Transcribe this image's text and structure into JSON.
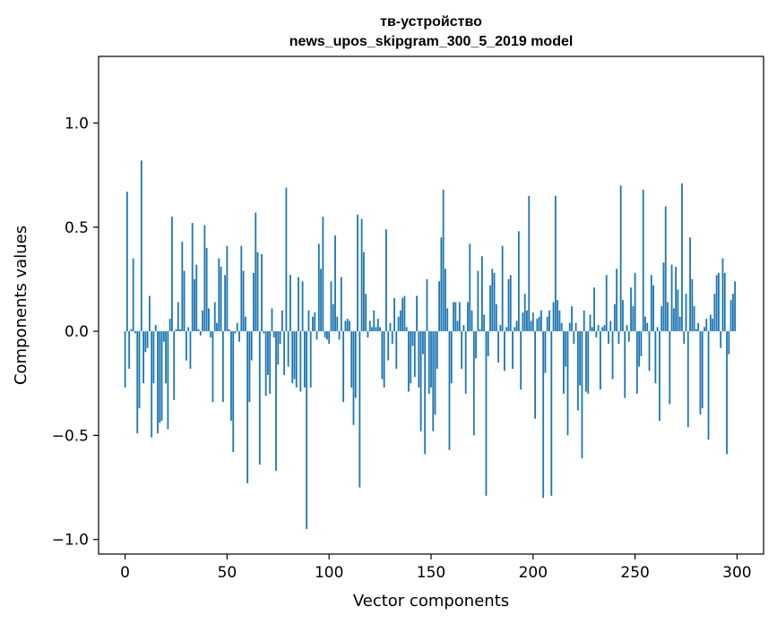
{
  "chart_data": {
    "type": "bar",
    "title_line1": "тв-устройство",
    "title_line2": "news_upos_skipgram_300_5_2019 model",
    "xlabel": "Vector components",
    "ylabel": "Components values",
    "xlim": [
      -13,
      313
    ],
    "ylim": [
      -1.07,
      1.32
    ],
    "xticks": [
      0,
      50,
      100,
      150,
      200,
      250,
      300
    ],
    "xtick_labels": [
      "0",
      "50",
      "100",
      "150",
      "200",
      "250",
      "300"
    ],
    "yticks": [
      -1.0,
      -0.5,
      0.0,
      0.5,
      1.0
    ],
    "ytick_labels": [
      "−1.0",
      "−0.5",
      "0.0",
      "0.5",
      "1.0"
    ],
    "grid": false,
    "color": "#1f77b4",
    "values": [
      -0.27,
      0.67,
      -0.18,
      0.01,
      0.35,
      -0.01,
      -0.49,
      -0.37,
      0.82,
      -0.25,
      -0.1,
      -0.08,
      0.17,
      -0.51,
      -0.25,
      0.03,
      -0.49,
      -0.44,
      -0.43,
      -0.05,
      -0.25,
      -0.47,
      0.06,
      0.55,
      -0.33,
      0.01,
      0.14,
      0.01,
      0.43,
      0.29,
      -0.14,
      0.02,
      -0.18,
      0.52,
      0.25,
      0.32,
      0.01,
      -0.02,
      0.1,
      0.51,
      0.4,
      0.11,
      -0.03,
      -0.34,
      0.14,
      0.04,
      0.35,
      0.31,
      -0.34,
      0.27,
      0.41,
      0.01,
      -0.43,
      -0.58,
      -0.01,
      0.04,
      -0.05,
      0.41,
      0.29,
      0.07,
      -0.73,
      -0.34,
      -0.14,
      0.28,
      0.57,
      0.38,
      -0.64,
      0.37,
      -0.01,
      -0.31,
      -0.21,
      -0.3,
      0.11,
      -0.03,
      -0.67,
      -0.16,
      -0.06,
      0.1,
      -0.21,
      0.69,
      -0.17,
      0.27,
      -0.25,
      -0.23,
      -0.27,
      0.26,
      -0.29,
      0.24,
      -0.27,
      -0.95,
      0.1,
      -0.27,
      0.07,
      0.09,
      -0.04,
      0.42,
      0.3,
      0.55,
      -0.03,
      -0.04,
      -0.06,
      0.24,
      0.13,
      0.46,
      0.07,
      -0.04,
      0.26,
      -0.34,
      0.05,
      0.06,
      0.05,
      -0.27,
      -0.45,
      -0.32,
      0.56,
      -0.75,
      0.54,
      0.38,
      0.18,
      -0.03,
      0.05,
      0.02,
      0.1,
      0.02,
      0.06,
      0.02,
      -0.23,
      -0.27,
      0.49,
      -0.14,
      0.04,
      -0.06,
      0.16,
      -0.18,
      0.07,
      0.1,
      0.16,
      0.17,
      0.02,
      -0.29,
      -0.25,
      -0.07,
      -0.22,
      0.17,
      -0.27,
      -0.48,
      -0.11,
      -0.59,
      0.25,
      -0.3,
      -0.27,
      -0.48,
      -0.4,
      -0.18,
      0.24,
      0.45,
      0.68,
      0.3,
      0.11,
      -0.57,
      -0.25,
      0.14,
      0.14,
      0.05,
      0.14,
      -0.18,
      0.03,
      -0.3,
      0.14,
      0.42,
      0.1,
      -0.5,
      -0.13,
      0.29,
      0.01,
      0.36,
      0.08,
      -0.79,
      -0.12,
      0.22,
      0.3,
      0.28,
      0.13,
      -0.15,
      0.03,
      0.41,
      -0.19,
      0.02,
      0.25,
      0.27,
      -0.18,
      0.02,
      0.05,
      0.48,
      -0.28,
      0.09,
      0.18,
      0.1,
      0.65,
      0.05,
      0.09,
      -0.42,
      0.06,
      0.07,
      0.1,
      -0.8,
      -0.2,
      0.07,
      0.1,
      -0.79,
      0.14,
      0.65,
      0.15,
      0.1,
      0.04,
      -0.3,
      -0.17,
      -0.5,
      0.04,
      0.12,
      -0.06,
      0.04,
      -0.38,
      -0.26,
      -0.61,
      0.1,
      -0.29,
      -0.3,
      0.08,
      0.02,
      0.21,
      -0.03,
      0.03,
      -0.28,
      0.02,
      0.03,
      0.27,
      -0.06,
      0.05,
      -0.23,
      0.13,
      0.3,
      -0.06,
      0.7,
      0.15,
      -0.32,
      0.03,
      -0.05,
      0.21,
      0.12,
      0.28,
      -0.3,
      -0.17,
      -0.12,
      0.68,
      0.07,
      0.04,
      -0.19,
      0.27,
      0.22,
      -0.25,
      0.02,
      -0.43,
      0.12,
      0.33,
      0.6,
      0.14,
      -0.35,
      0.32,
      0.11,
      0.31,
      0.2,
      0.07,
      0.71,
      -0.06,
      0.18,
      -0.46,
      0.45,
      0.25,
      0.12,
      0.01,
      0.04,
      -0.4,
      -0.37,
      0.02,
      0.06,
      -0.52,
      0.08,
      0.06,
      0.18,
      0.27,
      0.28,
      -0.08,
      0.35,
      0.28,
      -0.59,
      -0.11,
      0.15,
      0.18,
      0.24
    ]
  }
}
